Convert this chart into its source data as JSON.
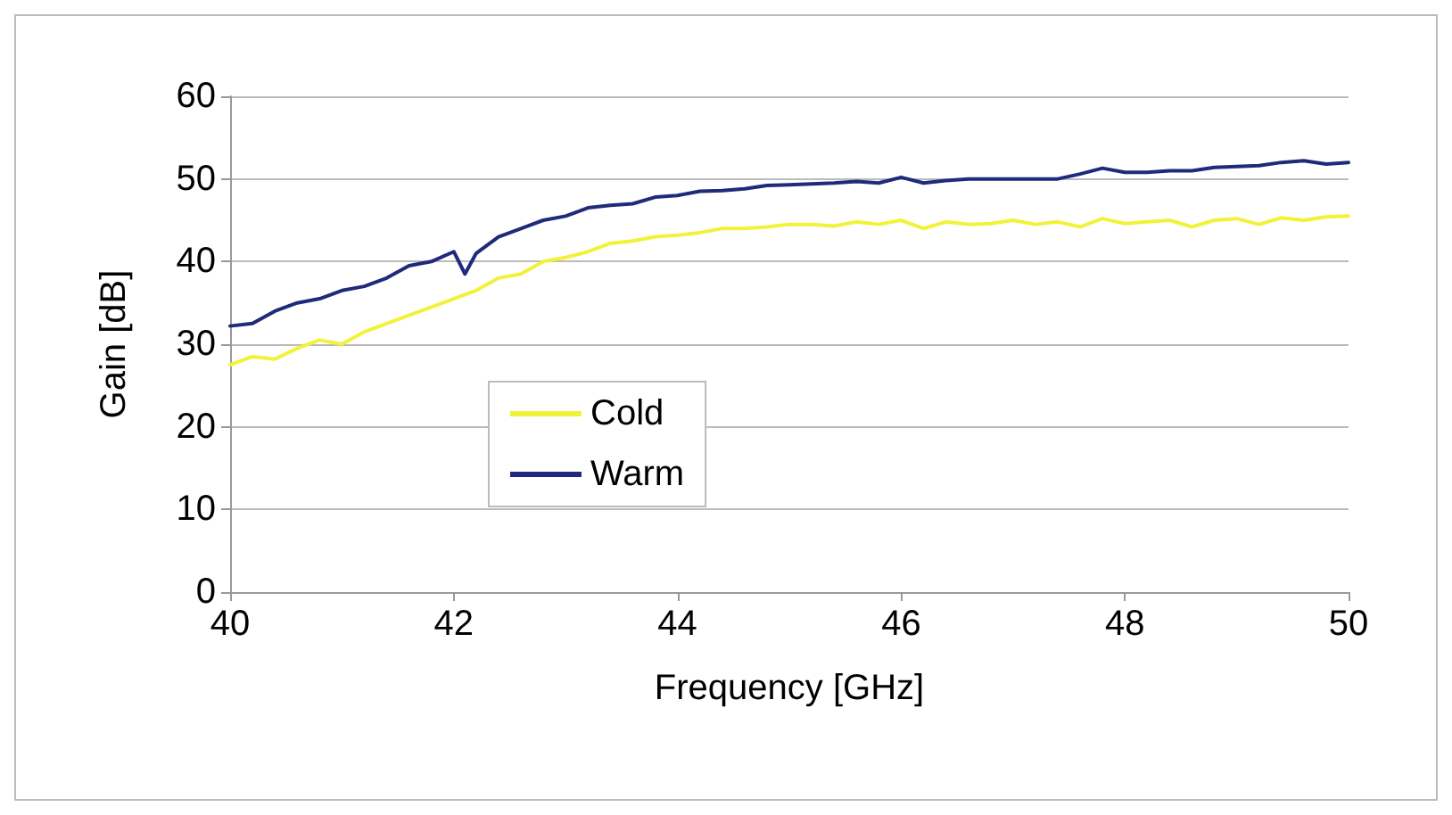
{
  "chart_data": {
    "type": "line",
    "xlabel": "Frequency [GHz]",
    "ylabel": "Gain [dB]",
    "x": [
      40.0,
      40.2,
      40.4,
      40.6,
      40.8,
      41.0,
      41.2,
      41.4,
      41.6,
      41.8,
      42.0,
      42.1,
      42.2,
      42.4,
      42.6,
      42.8,
      43.0,
      43.2,
      43.4,
      43.6,
      43.8,
      44.0,
      44.2,
      44.4,
      44.6,
      44.8,
      45.0,
      45.2,
      45.4,
      45.6,
      45.8,
      46.0,
      46.2,
      46.4,
      46.6,
      46.8,
      47.0,
      47.2,
      47.4,
      47.6,
      47.8,
      48.0,
      48.2,
      48.4,
      48.6,
      48.8,
      49.0,
      49.2,
      49.4,
      49.6,
      49.8,
      50.0
    ],
    "series": [
      {
        "name": "Cold",
        "color": "#f2f23a",
        "values": [
          27.5,
          28.5,
          28.2,
          29.5,
          30.5,
          30,
          31.5,
          32.5,
          33.5,
          34.5,
          35.5,
          36,
          36.5,
          38,
          38.5,
          40,
          40.5,
          41.2,
          42.2,
          42.5,
          43,
          43.2,
          43.5,
          44,
          44,
          44.2,
          44.5,
          44.5,
          44.3,
          44.8,
          44.5,
          45,
          44,
          44.8,
          44.5,
          44.6,
          45,
          44.5,
          44.8,
          44.2,
          45.2,
          44.6,
          44.8,
          45,
          44.2,
          45,
          45.2,
          44.5,
          45.3,
          45,
          45.4,
          45.5
        ]
      },
      {
        "name": "Warm",
        "color": "#1f2a7a",
        "values": [
          32.2,
          32.5,
          34,
          35,
          35.5,
          36.5,
          37,
          38,
          39.5,
          40,
          41.2,
          38.5,
          41,
          43,
          44,
          45,
          45.5,
          46.5,
          46.8,
          47,
          47.8,
          48,
          48.5,
          48.6,
          48.8,
          49.2,
          49.3,
          49.4,
          49.5,
          49.7,
          49.5,
          50.2,
          49.5,
          49.8,
          50,
          50,
          50,
          50,
          50,
          50.6,
          51.3,
          50.8,
          50.8,
          51,
          51,
          51.4,
          51.5,
          51.6,
          52,
          52.2,
          51.8,
          52
        ]
      }
    ],
    "xlim": [
      40,
      50
    ],
    "xticks": [
      40,
      42,
      44,
      46,
      48,
      50
    ],
    "ylim": [
      0,
      60
    ],
    "yticks": [
      0,
      10,
      20,
      30,
      40,
      50,
      60
    ],
    "grid": "y",
    "legend": "left",
    "marker": "none",
    "line_style": "solid"
  }
}
